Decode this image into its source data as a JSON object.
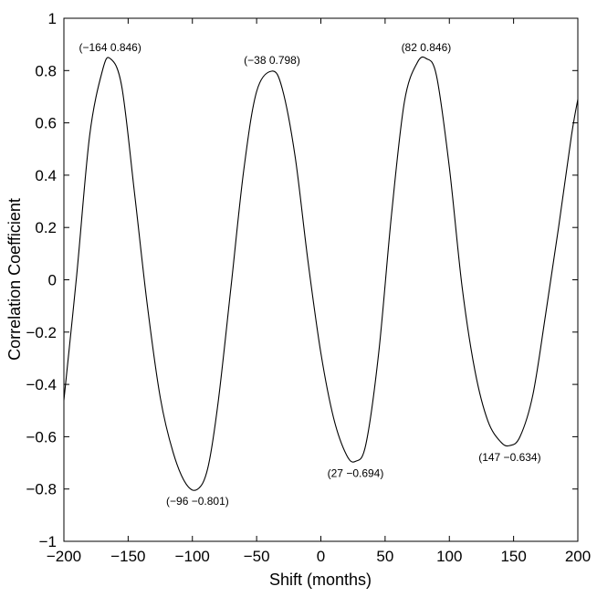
{
  "chart_data": {
    "type": "line",
    "title": "",
    "xlabel": "Shift (months)",
    "ylabel": "Correlation Coefficient",
    "xlim": [
      -200,
      200
    ],
    "ylim": [
      -1,
      1
    ],
    "grid": false,
    "x_ticks": [
      -200,
      -150,
      -100,
      -50,
      0,
      50,
      100,
      150,
      200
    ],
    "x_tick_labels": [
      "−200",
      "−150",
      "−100",
      "−50",
      "0",
      "50",
      "100",
      "150",
      "200"
    ],
    "y_ticks": [
      -1,
      -0.8,
      -0.6,
      -0.4,
      -0.2,
      0,
      0.2,
      0.4,
      0.6,
      0.8,
      1
    ],
    "y_tick_labels": [
      "−1",
      "−0.8",
      "−0.6",
      "−0.4",
      "−0.2",
      "0",
      "0.2",
      "0.4",
      "0.6",
      "0.8",
      "1"
    ],
    "series": [
      {
        "x": [
          -200,
          -190,
          -180,
          -170,
          -164,
          -155,
          -145,
          -135,
          -125,
          -115,
          -105,
          -96,
          -88,
          -80,
          -70,
          -60,
          -50,
          -38,
          -30,
          -20,
          -10,
          0,
          10,
          20,
          27,
          35,
          45,
          55,
          65,
          75,
          82,
          90,
          100,
          110,
          120,
          130,
          140,
          147,
          155,
          165,
          175,
          185,
          195,
          200
        ],
        "y": [
          -0.46,
          0.02,
          0.55,
          0.8,
          0.846,
          0.74,
          0.33,
          -0.1,
          -0.45,
          -0.66,
          -0.78,
          -0.801,
          -0.72,
          -0.47,
          -0.03,
          0.42,
          0.72,
          0.798,
          0.73,
          0.47,
          0.07,
          -0.28,
          -0.53,
          -0.67,
          -0.694,
          -0.63,
          -0.28,
          0.25,
          0.68,
          0.83,
          0.846,
          0.78,
          0.43,
          -0.03,
          -0.35,
          -0.54,
          -0.62,
          -0.634,
          -0.6,
          -0.44,
          -0.13,
          0.2,
          0.55,
          0.69
        ]
      }
    ],
    "annotations": [
      {
        "x": -164,
        "y": 0.846,
        "text": "(−164 0.846)",
        "pos": "above"
      },
      {
        "x": -38,
        "y": 0.798,
        "text": "(−38 0.798)",
        "pos": "above"
      },
      {
        "x": 82,
        "y": 0.846,
        "text": "(82 0.846)",
        "pos": "above"
      },
      {
        "x": -96,
        "y": -0.801,
        "text": "(−96 −0.801)",
        "pos": "below"
      },
      {
        "x": 27,
        "y": -0.694,
        "text": "(27 −0.694)",
        "pos": "below"
      },
      {
        "x": 147,
        "y": -0.634,
        "text": "(147 −0.634)",
        "pos": "below"
      }
    ]
  }
}
